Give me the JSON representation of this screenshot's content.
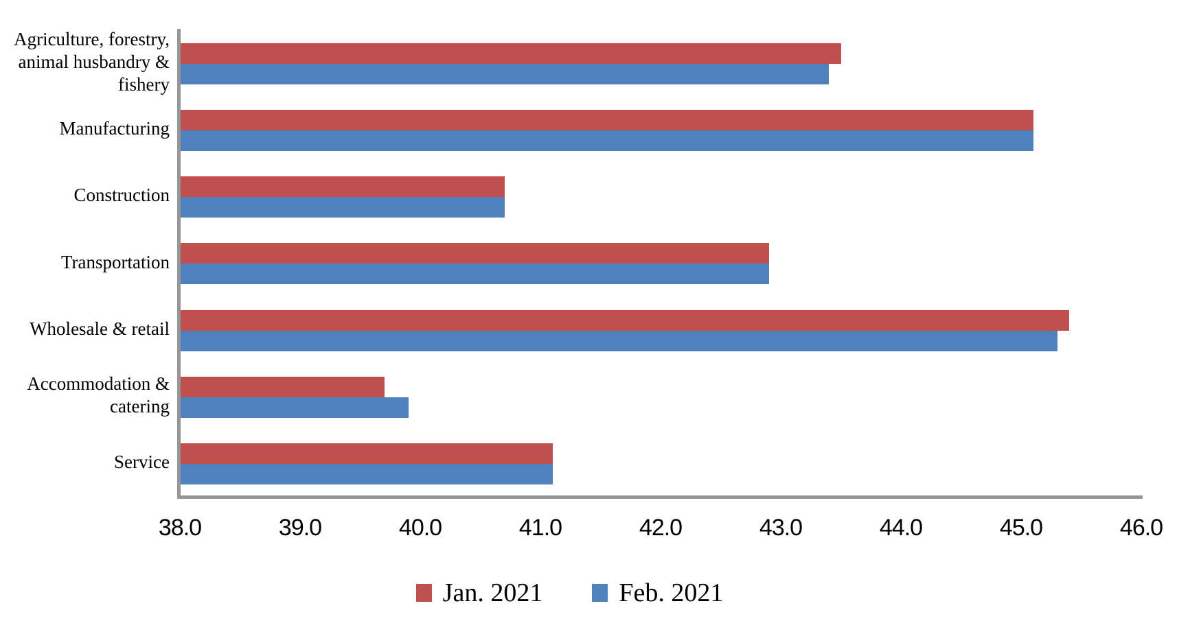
{
  "chart_data": {
    "type": "bar",
    "orientation": "horizontal",
    "title": "",
    "xlabel": "",
    "ylabel": "",
    "xlim": [
      38.0,
      46.0
    ],
    "xtick_step": 1.0,
    "xticks": [
      "38.0",
      "39.0",
      "40.0",
      "41.0",
      "42.0",
      "43.0",
      "44.0",
      "45.0",
      "46.0"
    ],
    "grid": false,
    "legend_position": "bottom-center",
    "categories": [
      "Agriculture, forestry, animal husbandry & fishery",
      "Manufacturing",
      "Construction",
      "Transportation",
      "Wholesale & retail",
      "Accommodation & catering",
      "Service"
    ],
    "category_display": [
      "Agriculture, forestry,\nanimal husbandry &\nfishery",
      "Manufacturing",
      "Construction",
      "Transportation",
      "Wholesale & retail",
      "Accommodation &\ncatering",
      "Service"
    ],
    "series": [
      {
        "name": "Jan. 2021",
        "color": "#C0504D",
        "values": [
          43.5,
          45.1,
          40.7,
          42.9,
          45.4,
          39.7,
          41.1
        ]
      },
      {
        "name": "Feb. 2021",
        "color": "#4F81BD",
        "values": [
          43.4,
          45.1,
          40.7,
          42.9,
          45.3,
          39.9,
          41.1
        ]
      }
    ],
    "axis_color": "#969696",
    "background_color": "#FFFFFF",
    "text_color": "#000000"
  }
}
